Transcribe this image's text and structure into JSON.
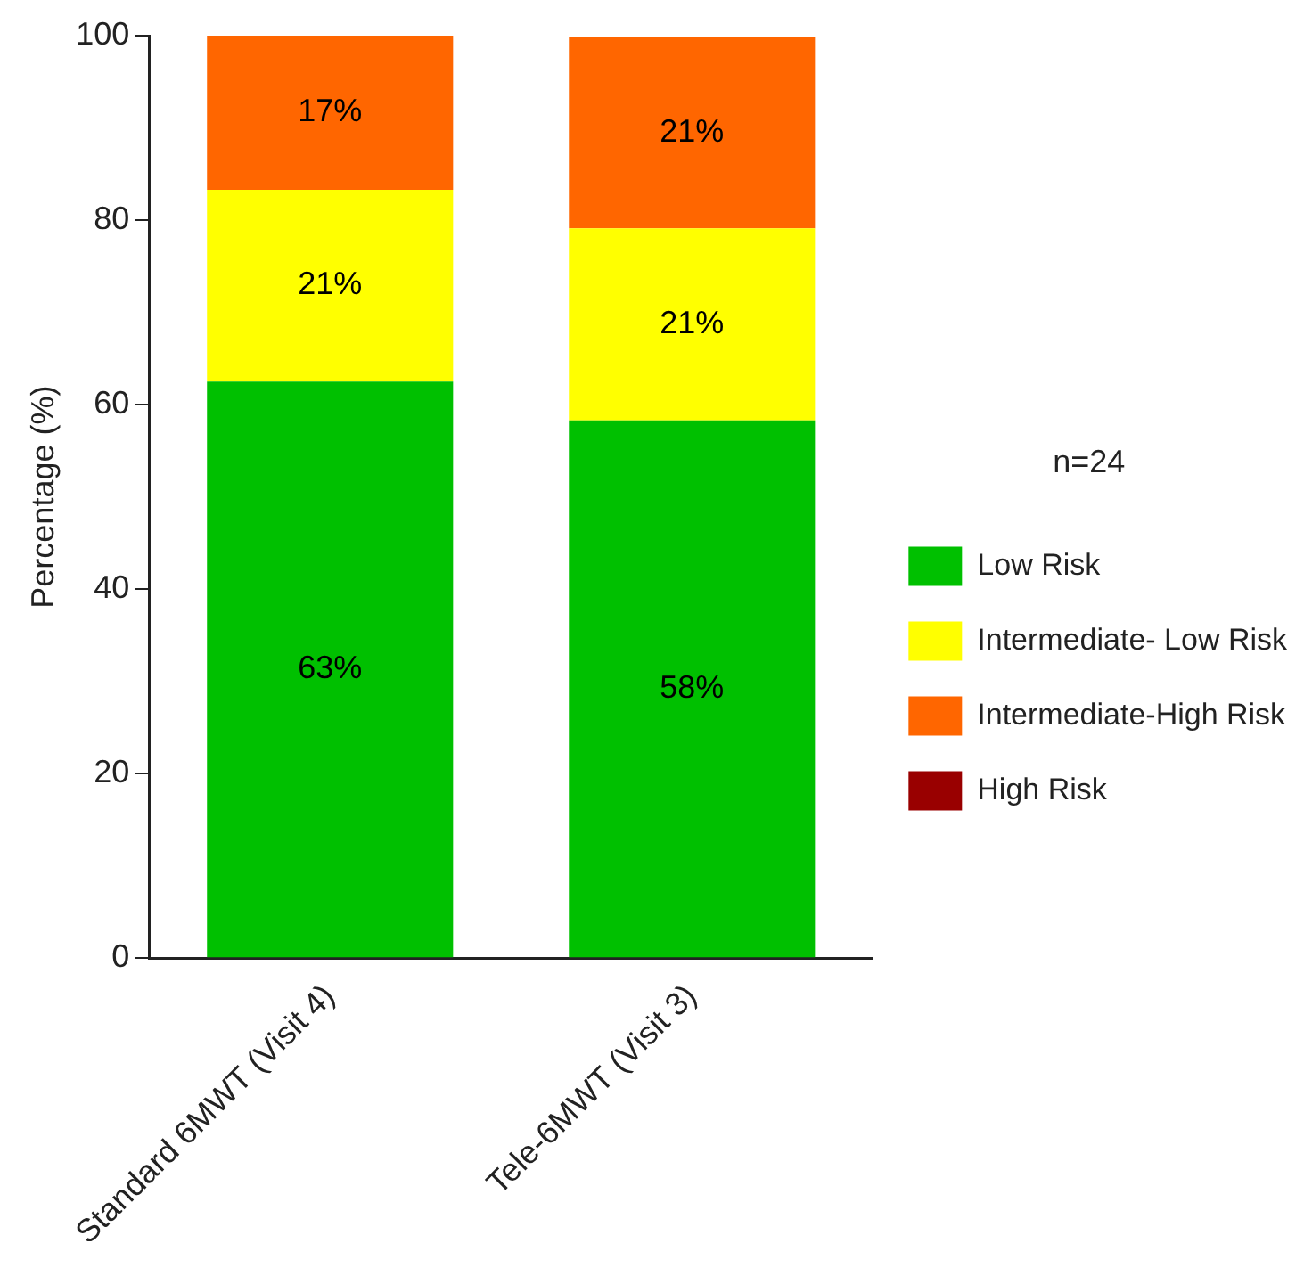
{
  "chart_data": {
    "type": "bar",
    "stacked": true,
    "ylabel": "Percentage (%)",
    "legend_title": "n=24",
    "legend": "right",
    "grid": false,
    "categories": [
      "Standard 6MWT (Visit 4)",
      "Tele-6MWT (Visit 3)"
    ],
    "ylim": [
      0,
      100
    ],
    "yticks": [
      0,
      20,
      40,
      60,
      80,
      100
    ],
    "series": [
      {
        "name": "Low Risk",
        "color": "#00c000",
        "values": [
          62.5,
          58.3
        ],
        "value_labels": [
          "63%",
          "58%"
        ]
      },
      {
        "name": "Intermediate- Low Risk",
        "color": "#ffff00",
        "values": [
          20.8,
          20.8
        ],
        "value_labels": [
          "21%",
          "21%"
        ]
      },
      {
        "name": "Intermediate-High Risk",
        "color": "#ff6600",
        "values": [
          16.7,
          20.8
        ],
        "value_labels": [
          "17%",
          "21%"
        ]
      },
      {
        "name": "High Risk",
        "color": "#990000",
        "values": [
          0,
          0
        ],
        "value_labels": [
          null,
          null
        ]
      }
    ]
  }
}
